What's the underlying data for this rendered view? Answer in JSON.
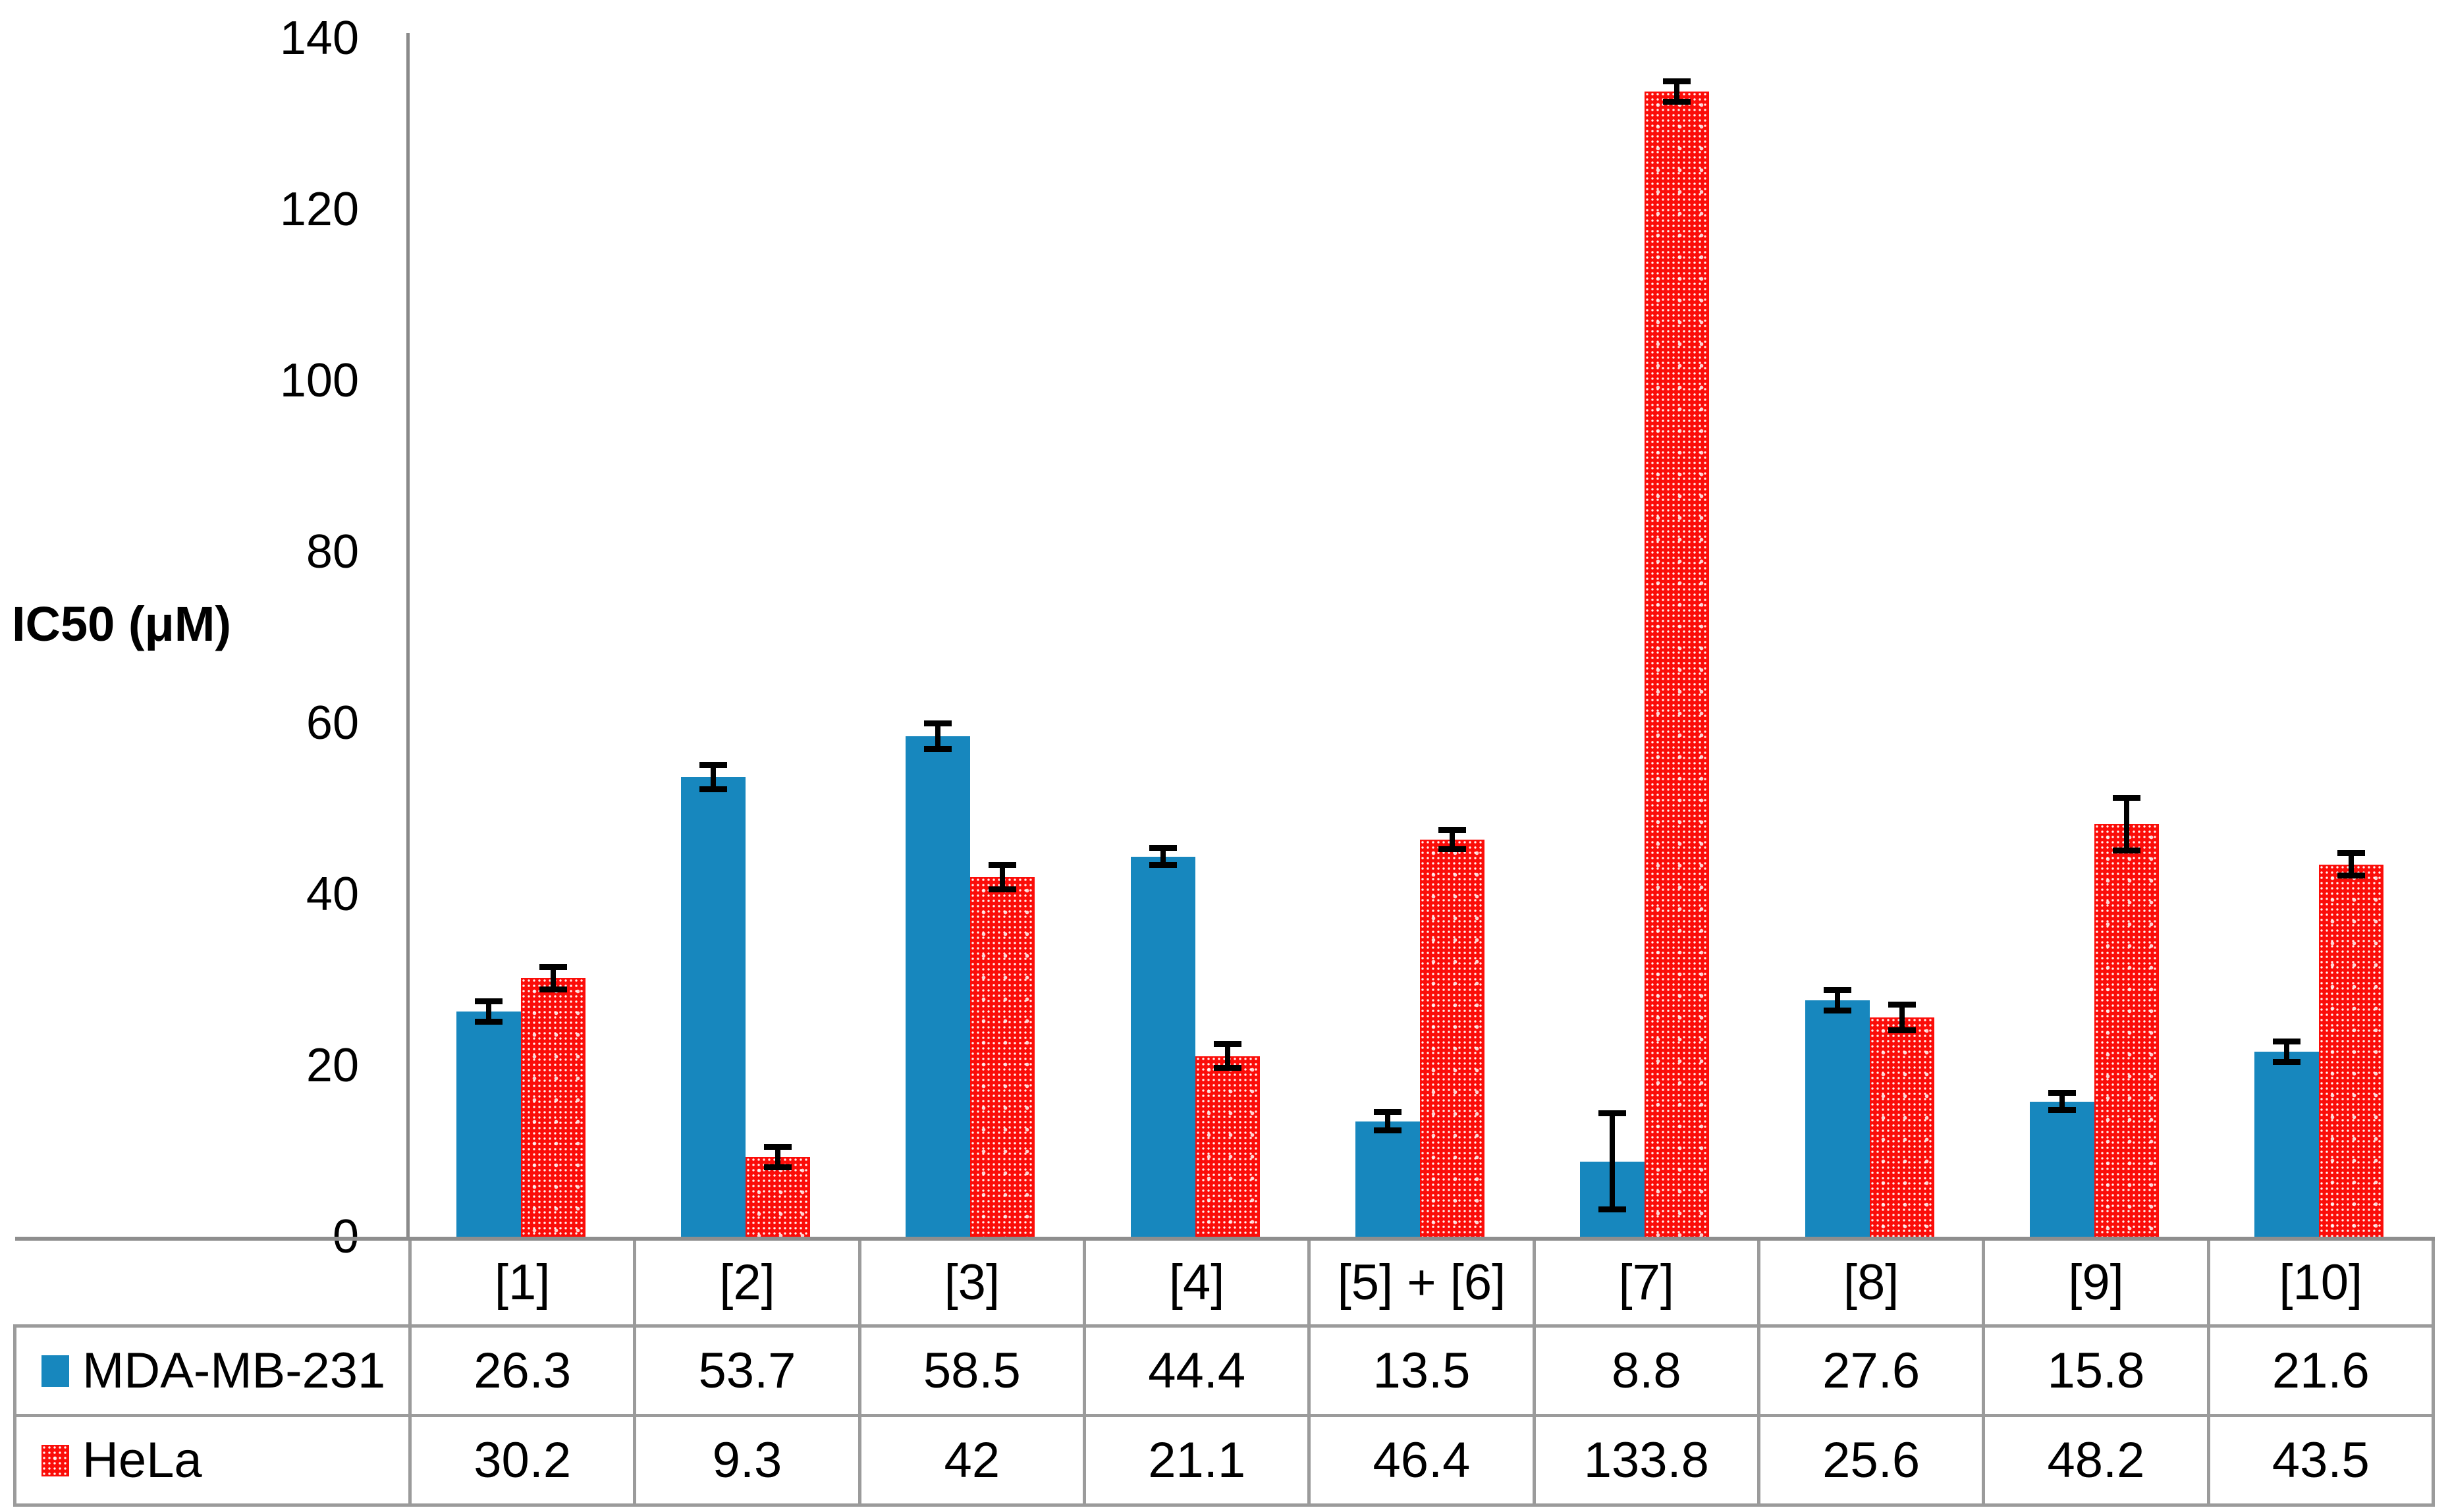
{
  "chart_data": {
    "type": "bar",
    "title": "",
    "ylabel": "IC50 (μM)",
    "xlabel": "",
    "ylim": [
      0,
      140
    ],
    "y_ticks": [
      0,
      20,
      40,
      60,
      80,
      100,
      120,
      140
    ],
    "grid": false,
    "legend_position": "table-left-column",
    "categories": [
      "[1]",
      "[2]",
      "[3]",
      "[4]",
      "[5] + [6]",
      "[7]",
      "[8]",
      "[9]",
      "[10]"
    ],
    "series": [
      {
        "name": "MDA-MB-231",
        "color": "#1787BE",
        "fill": "solid",
        "values": [
          26.3,
          53.7,
          58.5,
          44.4,
          13.5,
          8.8,
          27.6,
          15.8,
          21.6
        ],
        "errors": [
          1.2,
          1.4,
          1.5,
          1.0,
          1.1,
          5.6,
          1.2,
          1.0,
          1.2
        ]
      },
      {
        "name": "HeLa",
        "color": "#FB0D09",
        "fill": "white-dot-grid-pattern",
        "values": [
          30.2,
          9.3,
          42,
          21.1,
          46.4,
          133.8,
          25.6,
          48.2,
          43.5
        ],
        "errors": [
          1.3,
          1.2,
          1.4,
          1.4,
          1.1,
          1.2,
          1.5,
          3.1,
          1.3
        ]
      }
    ],
    "error_bar_color": "#000000",
    "axis_color": "#8A8A8A",
    "table_border_color": "#9B9B9B"
  }
}
